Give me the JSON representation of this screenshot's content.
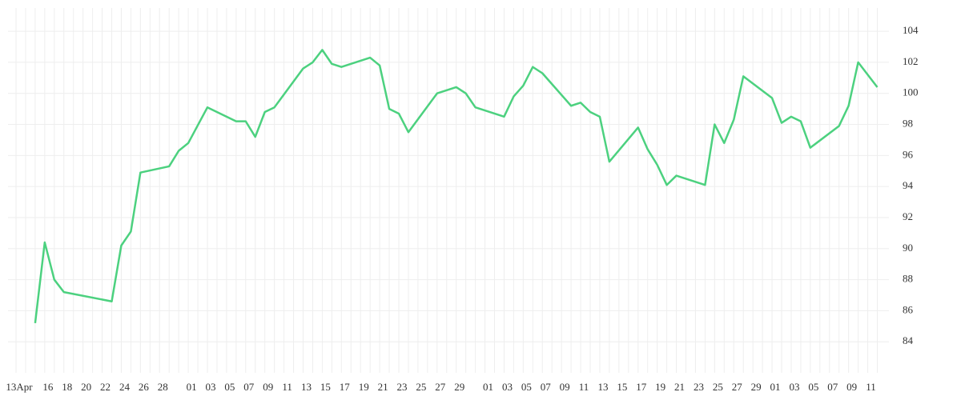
{
  "chart_data": {
    "type": "line",
    "categories": [
      "13Apr",
      null,
      null,
      "16",
      null,
      "18",
      null,
      "20",
      null,
      "22",
      null,
      "24",
      null,
      "26",
      null,
      "28",
      null,
      null,
      "01",
      null,
      "03",
      null,
      "05",
      null,
      "07",
      null,
      "09",
      null,
      "11",
      null,
      "13",
      null,
      "15",
      null,
      "17",
      null,
      "19",
      null,
      "21",
      null,
      "23",
      null,
      "25",
      null,
      "27",
      null,
      "29",
      null,
      null,
      "01",
      null,
      "03",
      null,
      "05",
      null,
      "07",
      null,
      "09",
      null,
      "11",
      null,
      "13",
      null,
      "15",
      null,
      "17",
      null,
      "19",
      null,
      "21",
      null,
      "23",
      null,
      "25",
      null,
      "27",
      null,
      "29",
      null,
      "01",
      null,
      "03",
      null,
      "05",
      null,
      "07",
      null,
      "09",
      null,
      "11",
      null
    ],
    "values": [
      null,
      null,
      85.2,
      90.4,
      88.0,
      87.2,
      null,
      null,
      null,
      null,
      86.6,
      90.2,
      91.1,
      94.9,
      null,
      null,
      95.3,
      96.3,
      96.8,
      null,
      99.1,
      null,
      null,
      98.2,
      98.2,
      97.2,
      98.8,
      99.1,
      null,
      null,
      101.6,
      102.0,
      102.8,
      101.9,
      101.7,
      null,
      null,
      102.3,
      101.8,
      99.0,
      98.7,
      97.5,
      null,
      null,
      100.0,
      100.2,
      100.4,
      100.0,
      99.1,
      null,
      null,
      98.5,
      99.8,
      100.5,
      101.7,
      101.3,
      null,
      null,
      99.2,
      99.4,
      98.8,
      98.5,
      95.6,
      null,
      null,
      97.8,
      96.4,
      95.4,
      94.1,
      94.7,
      null,
      null,
      94.1,
      98.0,
      96.8,
      98.3,
      101.1,
      null,
      null,
      99.7,
      98.1,
      98.5,
      98.2,
      96.5,
      null,
      null,
      97.9,
      99.2,
      102.0,
      null,
      100.4
    ],
    "color": "#4cd17f",
    "connect_gaps": true,
    "ylim": [
      82,
      105.5
    ],
    "yticks": [
      84,
      86,
      88,
      90,
      92,
      94,
      96,
      98,
      100,
      102,
      104
    ],
    "grid": true
  }
}
